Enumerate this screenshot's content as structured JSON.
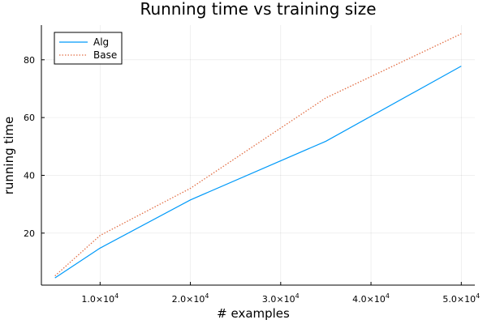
{
  "chart_data": {
    "type": "line",
    "title": "Running time vs training size",
    "xlabel": "# examples",
    "ylabel": "running time",
    "x": [
      5000,
      10000,
      20000,
      35000,
      50000
    ],
    "series": [
      {
        "name": "Alg",
        "values": [
          4.5,
          14.8,
          31.5,
          51.8,
          77.8
        ],
        "color": "#009af9",
        "style": "solid"
      },
      {
        "name": "Base",
        "values": [
          5.2,
          19.2,
          35.5,
          66.8,
          89.0
        ],
        "color": "#e26f46",
        "style": "dotted"
      }
    ],
    "xlim": [
      3500,
      51500
    ],
    "ylim": [
      2,
      92
    ],
    "xticks": [
      {
        "value": 10000,
        "mantissa": "1.0×10",
        "exp": "4"
      },
      {
        "value": 20000,
        "mantissa": "2.0×10",
        "exp": "4"
      },
      {
        "value": 30000,
        "mantissa": "3.0×10",
        "exp": "4"
      },
      {
        "value": 40000,
        "mantissa": "4.0×10",
        "exp": "4"
      },
      {
        "value": 50000,
        "mantissa": "5.0×10",
        "exp": "4"
      }
    ],
    "yticks": [
      {
        "value": 20,
        "label": "20"
      },
      {
        "value": 40,
        "label": "40"
      },
      {
        "value": 60,
        "label": "60"
      },
      {
        "value": 80,
        "label": "80"
      }
    ],
    "grid": true,
    "legend_position": "top-left"
  }
}
